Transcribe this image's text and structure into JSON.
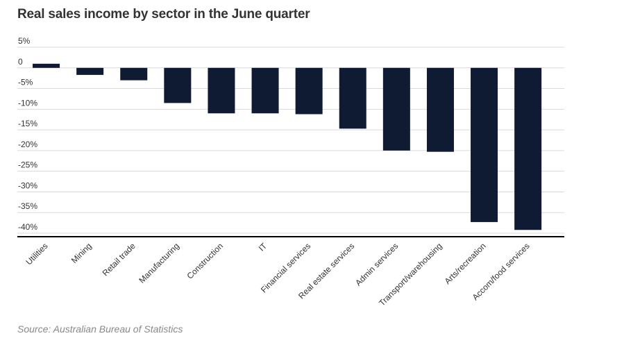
{
  "title": "Real sales income by sector in the June quarter",
  "source": "Source: Australian Bureau of Statistics",
  "colors": {
    "bar": "#0f1a33",
    "grid": "#d9d9d9",
    "axis": "#000000"
  },
  "chart_data": {
    "type": "bar",
    "title": "Real sales income by sector in the June quarter",
    "xlabel": "",
    "ylabel": "",
    "ylim": [
      -40,
      5
    ],
    "yticks": [
      5,
      0,
      -5,
      -10,
      -15,
      -20,
      -25,
      -30,
      -35,
      -40
    ],
    "ytick_labels": [
      "5%",
      "0",
      "-5%",
      "-10%",
      "-15%",
      "-20%",
      "-25%",
      "-30%",
      "-35%",
      "-40%"
    ],
    "categories": [
      "Utilities",
      "Mining",
      "Retail trade",
      "Manufacturing",
      "Construction",
      "IT",
      "Financial services",
      "Real estate services",
      "Admin services",
      "Transport/warehousing",
      "Arts/recreation",
      "Accom/food services"
    ],
    "values": [
      1,
      -1.7,
      -3,
      -8.5,
      -11,
      -11,
      -11.2,
      -14.7,
      -20,
      -20.3,
      -37.3,
      -39.2
    ],
    "grid": true,
    "legend": "none"
  }
}
